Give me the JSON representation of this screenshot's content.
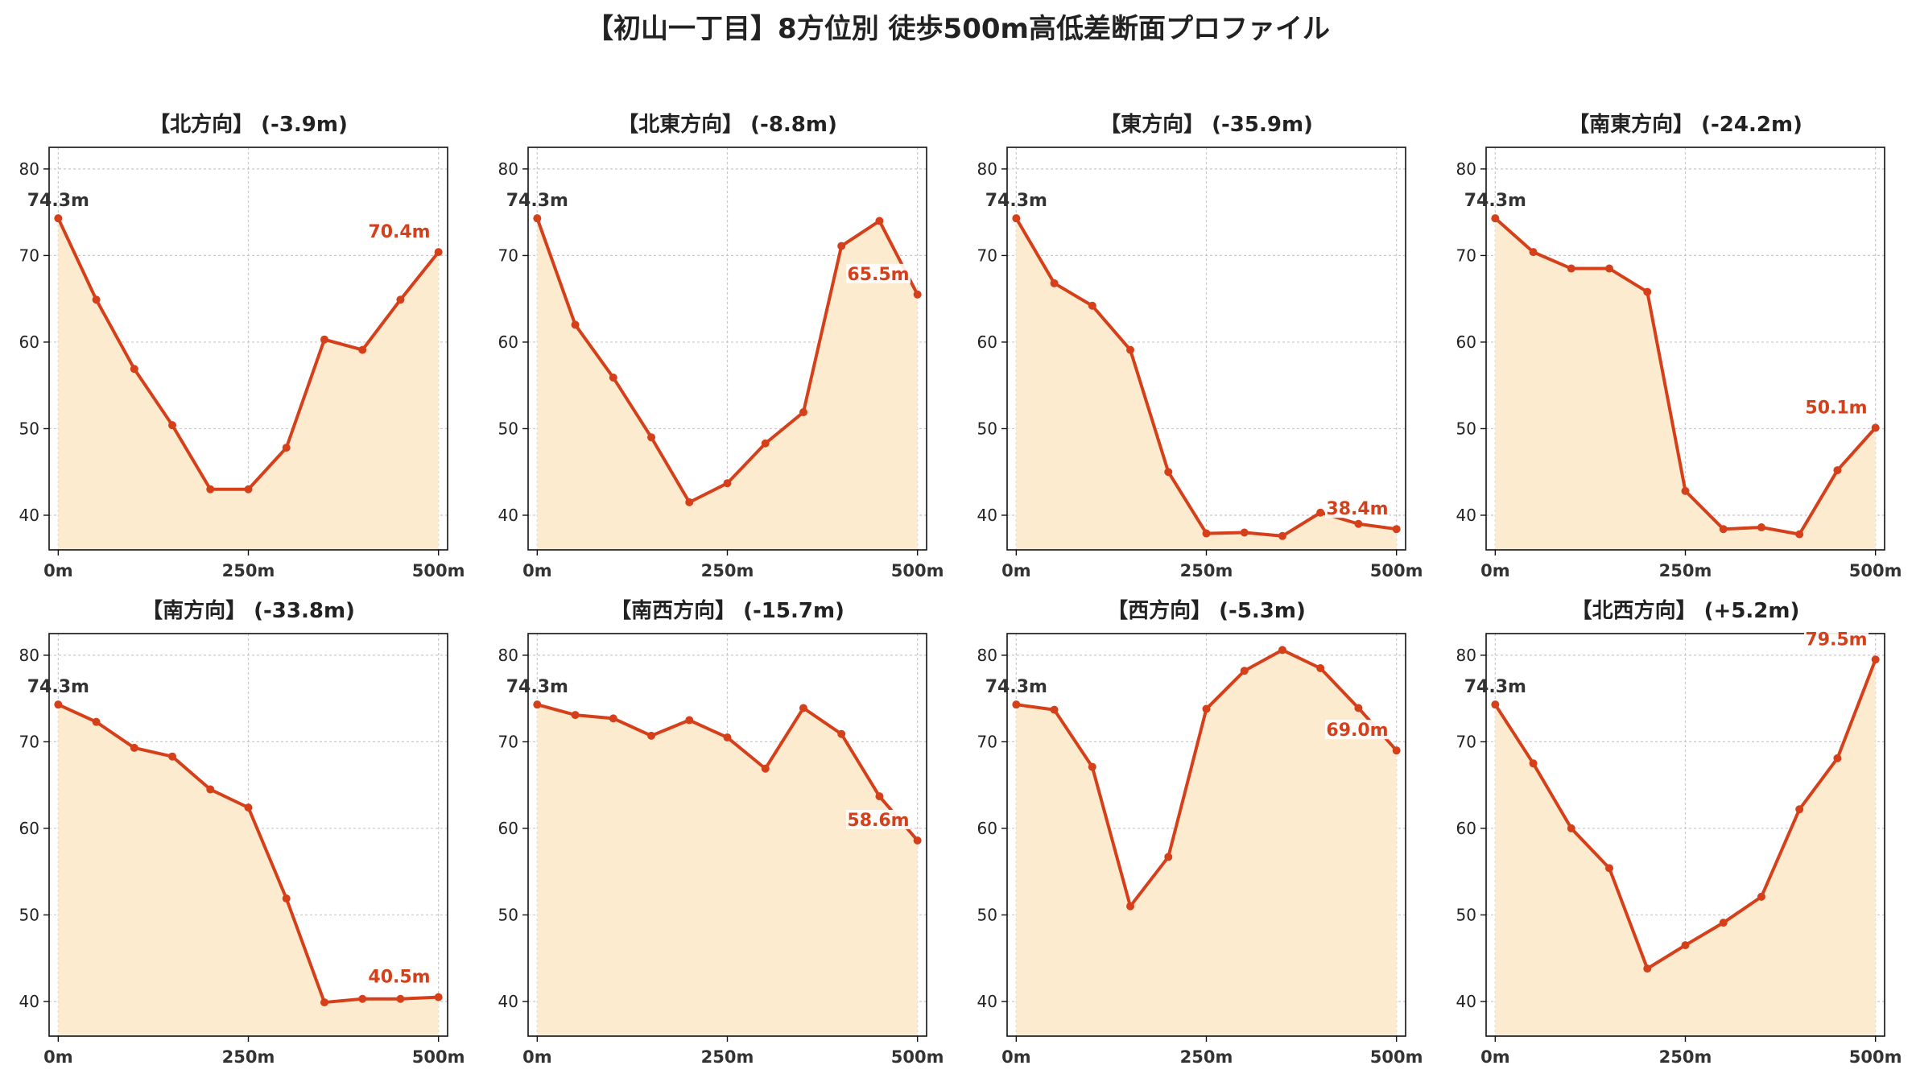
{
  "title": "【初山一丁目】8方位別 徒歩500m高低差断面プロファイル",
  "colors": {
    "line": "#d5401a",
    "fill": "#fdebd0",
    "start_label": "#333333",
    "end_label": "#d5401a",
    "grid": "#c8c8c8"
  },
  "chart_data": [
    {
      "type": "area",
      "title": "【北方向】 (-3.9m)",
      "x": [
        0,
        50,
        100,
        150,
        200,
        250,
        300,
        350,
        400,
        450,
        500
      ],
      "x_ticks": [
        "0m",
        "250m",
        "500m"
      ],
      "y_ticks": [
        "40",
        "50",
        "60",
        "70",
        "80"
      ],
      "xlim": [
        -12,
        512
      ],
      "ylim": [
        36,
        82.5
      ],
      "grid": true,
      "series": [
        {
          "values": [
            74.3,
            64.9,
            56.9,
            50.4,
            43.0,
            43.0,
            47.8,
            60.3,
            59.1,
            64.9,
            70.4
          ]
        }
      ],
      "start_label": "74.3m",
      "end_label": "70.4m"
    },
    {
      "type": "area",
      "title": "【北東方向】 (-8.8m)",
      "x": [
        0,
        50,
        100,
        150,
        200,
        250,
        300,
        350,
        400,
        450,
        500
      ],
      "x_ticks": [
        "0m",
        "250m",
        "500m"
      ],
      "y_ticks": [
        "40",
        "50",
        "60",
        "70",
        "80"
      ],
      "xlim": [
        -12,
        512
      ],
      "ylim": [
        36,
        82.5
      ],
      "grid": true,
      "series": [
        {
          "values": [
            74.3,
            62.0,
            55.9,
            49.0,
            41.5,
            43.7,
            48.3,
            51.9,
            71.1,
            74.0,
            65.5
          ]
        }
      ],
      "start_label": "74.3m",
      "end_label": "65.5m"
    },
    {
      "type": "area",
      "title": "【東方向】 (-35.9m)",
      "x": [
        0,
        50,
        100,
        150,
        200,
        250,
        300,
        350,
        400,
        450,
        500
      ],
      "x_ticks": [
        "0m",
        "250m",
        "500m"
      ],
      "y_ticks": [
        "40",
        "50",
        "60",
        "70",
        "80"
      ],
      "xlim": [
        -12,
        512
      ],
      "ylim": [
        36,
        82.5
      ],
      "grid": true,
      "series": [
        {
          "values": [
            74.3,
            66.8,
            64.2,
            59.1,
            45.0,
            37.9,
            38.0,
            37.6,
            40.3,
            39.0,
            38.4
          ]
        }
      ],
      "start_label": "74.3m",
      "end_label": "38.4m"
    },
    {
      "type": "area",
      "title": "【南東方向】 (-24.2m)",
      "x": [
        0,
        50,
        100,
        150,
        200,
        250,
        300,
        350,
        400,
        450,
        500
      ],
      "x_ticks": [
        "0m",
        "250m",
        "500m"
      ],
      "y_ticks": [
        "40",
        "50",
        "60",
        "70",
        "80"
      ],
      "xlim": [
        -12,
        512
      ],
      "ylim": [
        36,
        82.5
      ],
      "grid": true,
      "series": [
        {
          "values": [
            74.3,
            70.4,
            68.5,
            68.5,
            65.8,
            42.8,
            38.4,
            38.6,
            37.8,
            45.2,
            50.1
          ]
        }
      ],
      "start_label": "74.3m",
      "end_label": "50.1m"
    },
    {
      "type": "area",
      "title": "【南方向】 (-33.8m)",
      "x": [
        0,
        50,
        100,
        150,
        200,
        250,
        300,
        350,
        400,
        450,
        500
      ],
      "x_ticks": [
        "0m",
        "250m",
        "500m"
      ],
      "y_ticks": [
        "40",
        "50",
        "60",
        "70",
        "80"
      ],
      "xlim": [
        -12,
        512
      ],
      "ylim": [
        36,
        82.5
      ],
      "grid": true,
      "series": [
        {
          "values": [
            74.3,
            72.3,
            69.3,
            68.3,
            64.5,
            62.4,
            51.9,
            39.9,
            40.3,
            40.3,
            40.5
          ]
        }
      ],
      "start_label": "74.3m",
      "end_label": "40.5m"
    },
    {
      "type": "area",
      "title": "【南西方向】 (-15.7m)",
      "x": [
        0,
        50,
        100,
        150,
        200,
        250,
        300,
        350,
        400,
        450,
        500
      ],
      "x_ticks": [
        "0m",
        "250m",
        "500m"
      ],
      "y_ticks": [
        "40",
        "50",
        "60",
        "70",
        "80"
      ],
      "xlim": [
        -12,
        512
      ],
      "ylim": [
        36,
        82.5
      ],
      "grid": true,
      "series": [
        {
          "values": [
            74.3,
            73.1,
            72.7,
            70.7,
            72.5,
            70.5,
            66.9,
            73.9,
            70.9,
            63.7,
            58.6
          ]
        }
      ],
      "start_label": "74.3m",
      "end_label": "58.6m"
    },
    {
      "type": "area",
      "title": "【西方向】 (-5.3m)",
      "x": [
        0,
        50,
        100,
        150,
        200,
        250,
        300,
        350,
        400,
        450,
        500
      ],
      "x_ticks": [
        "0m",
        "250m",
        "500m"
      ],
      "y_ticks": [
        "40",
        "50",
        "60",
        "70",
        "80"
      ],
      "xlim": [
        -12,
        512
      ],
      "ylim": [
        36,
        82.5
      ],
      "grid": true,
      "series": [
        {
          "values": [
            74.3,
            73.7,
            67.1,
            51.0,
            56.7,
            73.8,
            78.2,
            80.6,
            78.5,
            73.9,
            69.0
          ]
        }
      ],
      "start_label": "74.3m",
      "end_label": "69.0m"
    },
    {
      "type": "area",
      "title": "【北西方向】 (+5.2m)",
      "x": [
        0,
        50,
        100,
        150,
        200,
        250,
        300,
        350,
        400,
        450,
        500
      ],
      "x_ticks": [
        "0m",
        "250m",
        "500m"
      ],
      "y_ticks": [
        "40",
        "50",
        "60",
        "70",
        "80"
      ],
      "xlim": [
        -12,
        512
      ],
      "ylim": [
        36,
        82.5
      ],
      "grid": true,
      "series": [
        {
          "values": [
            74.3,
            67.5,
            60.0,
            55.4,
            43.8,
            46.5,
            49.1,
            52.1,
            62.2,
            68.1,
            79.5
          ]
        }
      ],
      "start_label": "74.3m",
      "end_label": "79.5m"
    }
  ]
}
